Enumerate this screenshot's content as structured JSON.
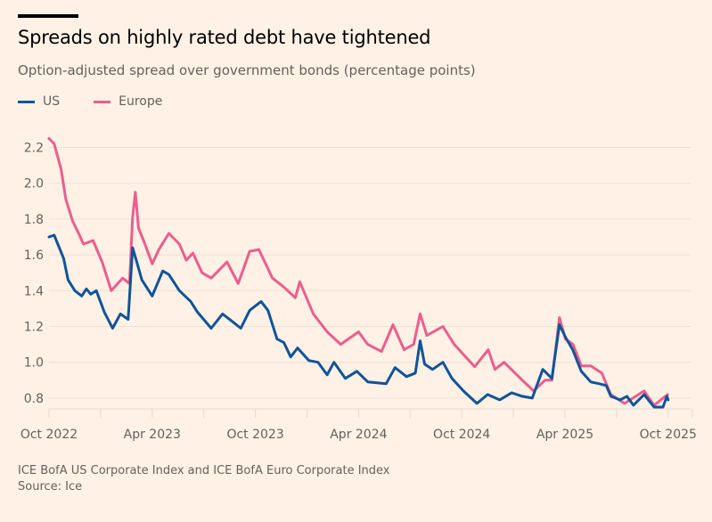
{
  "header": {
    "title": "Spreads on highly rated debt have tightened",
    "subtitle": "Option-adjusted spread over government bonds (percentage points)"
  },
  "legend": [
    {
      "name": "US",
      "color": "#0F5499"
    },
    {
      "name": "Europe",
      "color": "#EB5E8D"
    }
  ],
  "footer": {
    "note": "ICE BofA US Corporate Index and ICE BofA Euro Corporate Index",
    "source": "Source: Ice"
  },
  "chart_data": {
    "type": "line",
    "title": "Spreads on highly rated debt have tightened",
    "subtitle": "Option-adjusted spread over government bonds (percentage points)",
    "xlabel": "",
    "ylabel": "Option-adjusted spread (percentage points)",
    "x_unit": "months since Oct 2022",
    "xlim": [
      0,
      37.5
    ],
    "ylim": [
      0.74,
      2.25
    ],
    "grid": true,
    "legend_position": "top-left",
    "y_ticks": [
      0.8,
      1.0,
      1.2,
      1.4,
      1.6,
      1.8,
      2.0,
      2.2
    ],
    "y_tick_labels": [
      "0.8",
      "1.0",
      "1.2",
      "1.4",
      "1.6",
      "1.8",
      "2.0",
      "2.2"
    ],
    "x_minor_ticks": [
      0,
      3,
      6,
      9,
      12,
      15,
      18,
      21,
      24,
      27,
      30,
      33,
      36,
      37.4
    ],
    "x_tick_labels": [
      {
        "x": 0,
        "label": "Oct 2022"
      },
      {
        "x": 6,
        "label": "Apr 2023"
      },
      {
        "x": 12,
        "label": "Oct 2023"
      },
      {
        "x": 18,
        "label": "Apr 2024"
      },
      {
        "x": 24,
        "label": "Oct 2024"
      },
      {
        "x": 30,
        "label": "Apr 2025"
      },
      {
        "x": 36,
        "label": "Oct 2025"
      }
    ],
    "series": [
      {
        "name": "Europe",
        "color": "#EB5E8D",
        "x": [
          0,
          0.3,
          0.7,
          0.98,
          1.37,
          1.77,
          2.0,
          2.56,
          3.09,
          3.62,
          4.28,
          4.68,
          4.86,
          5.02,
          5.2,
          5.54,
          6.0,
          6.39,
          6.97,
          7.58,
          7.98,
          8.37,
          8.9,
          9.43,
          10.35,
          11.0,
          11.67,
          12.2,
          12.99,
          13.66,
          14.32,
          14.58,
          15.37,
          16.17,
          16.96,
          18.0,
          18.53,
          19.33,
          20.0,
          20.65,
          21.2,
          21.58,
          21.97,
          22.9,
          23.56,
          24.75,
          25.54,
          25.93,
          26.46,
          27.52,
          28.18,
          28.84,
          29.24,
          29.68,
          30.03,
          30.47,
          30.95,
          31.5,
          32.14,
          32.67,
          33.46,
          34.6,
          35.18,
          35.97
        ],
        "values": [
          2.25,
          2.22,
          2.08,
          1.91,
          1.79,
          1.71,
          1.66,
          1.68,
          1.56,
          1.4,
          1.47,
          1.44,
          1.81,
          1.95,
          1.75,
          1.67,
          1.55,
          1.63,
          1.72,
          1.66,
          1.57,
          1.61,
          1.5,
          1.47,
          1.56,
          1.44,
          1.62,
          1.63,
          1.47,
          1.42,
          1.36,
          1.45,
          1.27,
          1.17,
          1.1,
          1.17,
          1.1,
          1.06,
          1.21,
          1.07,
          1.1,
          1.27,
          1.15,
          1.2,
          1.1,
          0.975,
          1.07,
          0.96,
          1.0,
          0.9,
          0.84,
          0.9,
          0.9,
          1.25,
          1.13,
          1.1,
          0.98,
          0.98,
          0.94,
          0.82,
          0.77,
          0.84,
          0.76,
          0.82
        ]
      },
      {
        "name": "US",
        "color": "#0F5499",
        "x": [
          0,
          0.3,
          0.85,
          1.11,
          1.5,
          1.9,
          2.17,
          2.43,
          2.75,
          3.22,
          3.7,
          4.15,
          4.6,
          4.86,
          5.07,
          5.4,
          6.0,
          6.61,
          6.97,
          7.58,
          8.24,
          8.63,
          9.43,
          10.09,
          10.63,
          11.15,
          11.67,
          12.33,
          12.73,
          13.26,
          13.66,
          14.05,
          14.45,
          15.11,
          15.64,
          16.17,
          16.57,
          17.23,
          17.9,
          18.54,
          19.6,
          20.12,
          20.79,
          21.3,
          21.58,
          21.84,
          22.3,
          22.9,
          23.43,
          24.1,
          24.88,
          25.5,
          26.2,
          26.9,
          27.52,
          28.1,
          28.71,
          29.24,
          29.68,
          30.03,
          30.45,
          30.95,
          31.5,
          32.0,
          32.4,
          32.67,
          33.2,
          33.6,
          33.98,
          34.6,
          35.18,
          35.7,
          35.93,
          36.0
        ],
        "values": [
          1.7,
          1.71,
          1.58,
          1.46,
          1.4,
          1.37,
          1.41,
          1.38,
          1.4,
          1.28,
          1.19,
          1.27,
          1.24,
          1.64,
          1.57,
          1.46,
          1.37,
          1.51,
          1.49,
          1.4,
          1.34,
          1.28,
          1.19,
          1.27,
          1.23,
          1.19,
          1.29,
          1.34,
          1.29,
          1.13,
          1.11,
          1.03,
          1.08,
          1.01,
          1.0,
          0.93,
          1.0,
          0.91,
          0.95,
          0.89,
          0.88,
          0.97,
          0.92,
          0.94,
          1.12,
          0.99,
          0.96,
          1.0,
          0.91,
          0.84,
          0.77,
          0.82,
          0.79,
          0.83,
          0.81,
          0.8,
          0.96,
          0.91,
          1.21,
          1.14,
          1.07,
          0.95,
          0.89,
          0.88,
          0.87,
          0.81,
          0.79,
          0.81,
          0.76,
          0.82,
          0.75,
          0.75,
          0.81,
          0.79
        ]
      }
    ]
  }
}
